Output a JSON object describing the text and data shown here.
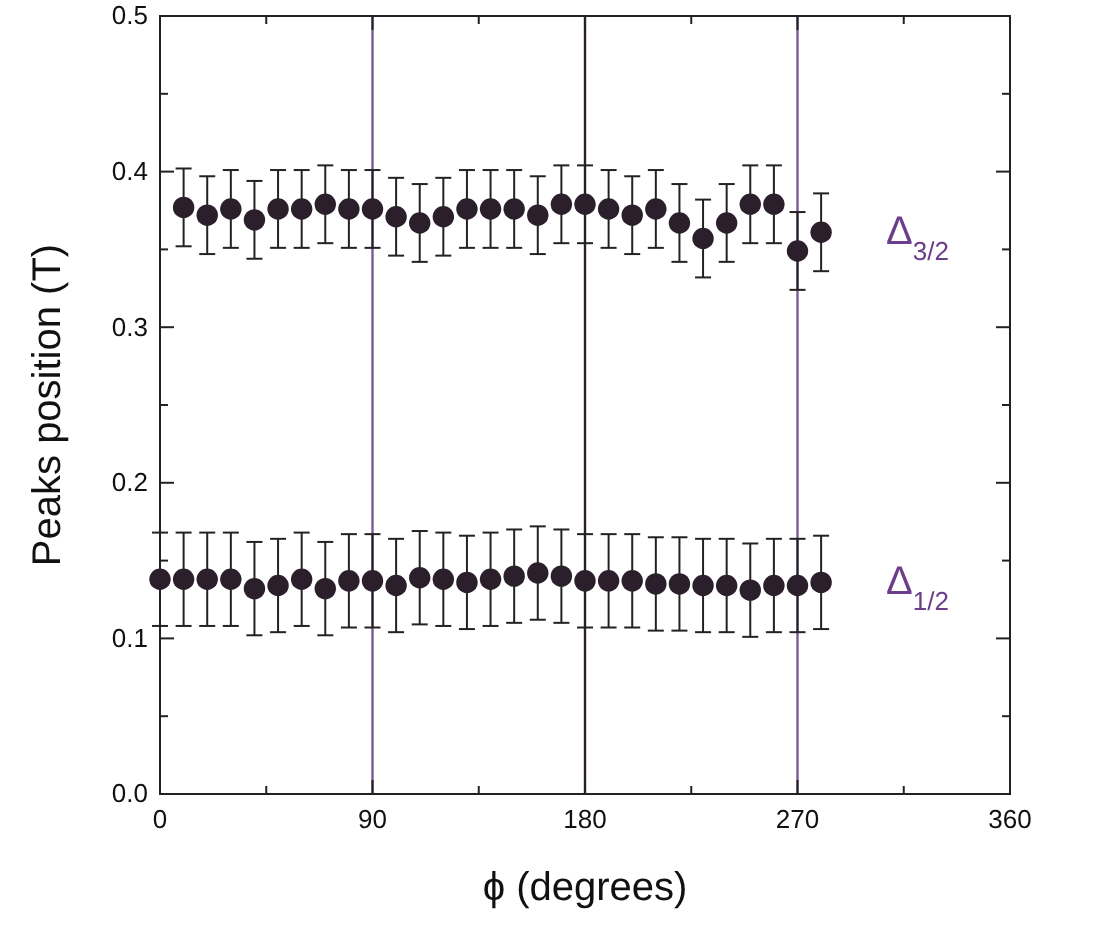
{
  "chart_data": {
    "type": "scatter",
    "xlabel": "ϕ (degrees)",
    "ylabel": "Peaks position (T)",
    "xlim": [
      0,
      360
    ],
    "xticks": [
      0,
      {
        "value": 45,
        "label": null
      },
      90,
      {
        "value": 135,
        "label": null
      },
      180,
      {
        "value": 225,
        "label": null
      },
      270,
      {
        "value": 315,
        "label": null
      },
      360
    ],
    "ylim": [
      0.0,
      0.5
    ],
    "yticks": [
      {
        "value": 0,
        "label": "0.0"
      },
      {
        "value": 0.05,
        "label": null
      },
      0.1,
      {
        "value": 0.15,
        "label": null
      },
      0.2,
      {
        "value": 0.25,
        "label": null
      },
      0.3,
      {
        "value": 0.35,
        "label": null
      },
      0.4,
      {
        "value": 0.45,
        "label": null
      },
      0.5
    ],
    "marker": "circle",
    "grid": false,
    "legend": "right",
    "ref_lines": [
      {
        "axis": "x",
        "value": 90,
        "color": "#7a5a94"
      },
      {
        "axis": "x",
        "value": 180,
        "color": "#2b1f2b"
      },
      {
        "axis": "x",
        "value": 270,
        "color": "#7a5a94"
      }
    ],
    "series": [
      {
        "name": "Δ$_{3/2}$",
        "color": "#2b1f2b",
        "x": [
          10,
          20,
          30,
          40,
          50,
          60,
          70,
          80,
          90,
          100,
          110,
          120,
          130,
          140,
          150,
          160,
          170,
          180,
          190,
          200,
          210,
          220,
          230,
          240,
          250,
          260,
          270,
          280
        ],
        "values": [
          0.377,
          0.372,
          0.376,
          0.369,
          0.376,
          0.376,
          0.379,
          0.376,
          0.376,
          0.371,
          0.367,
          0.371,
          0.376,
          0.376,
          0.376,
          0.372,
          0.379,
          0.379,
          0.376,
          0.372,
          0.376,
          0.367,
          0.357,
          0.367,
          0.379,
          0.379,
          0.349,
          0.361
        ],
        "errors": [
          0.025,
          0.025,
          0.025,
          0.025,
          0.025,
          0.025,
          0.025,
          0.025,
          0.025,
          0.025,
          0.025,
          0.025,
          0.025,
          0.025,
          0.025,
          0.025,
          0.025,
          0.025,
          0.025,
          0.025,
          0.025,
          0.025,
          0.025,
          0.025,
          0.025,
          0.025,
          0.025,
          0.025
        ]
      },
      {
        "name": "Δ$_{1/2}$",
        "color": "#2b1f2b",
        "x": [
          0,
          10,
          20,
          30,
          40,
          50,
          60,
          70,
          80,
          90,
          100,
          110,
          120,
          130,
          140,
          150,
          160,
          170,
          180,
          190,
          200,
          210,
          220,
          230,
          240,
          250,
          260,
          270,
          280
        ],
        "values": [
          0.138,
          0.138,
          0.138,
          0.138,
          0.132,
          0.134,
          0.138,
          0.132,
          0.137,
          0.137,
          0.134,
          0.139,
          0.138,
          0.136,
          0.138,
          0.14,
          0.142,
          0.14,
          0.137,
          0.137,
          0.137,
          0.135,
          0.135,
          0.134,
          0.134,
          0.131,
          0.134,
          0.134,
          0.136
        ],
        "errors": [
          0.03,
          0.03,
          0.03,
          0.03,
          0.03,
          0.03,
          0.03,
          0.03,
          0.03,
          0.03,
          0.03,
          0.03,
          0.03,
          0.03,
          0.03,
          0.03,
          0.03,
          0.03,
          0.03,
          0.03,
          0.03,
          0.03,
          0.03,
          0.03,
          0.03,
          0.03,
          0.03,
          0.03,
          0.03
        ]
      }
    ]
  }
}
